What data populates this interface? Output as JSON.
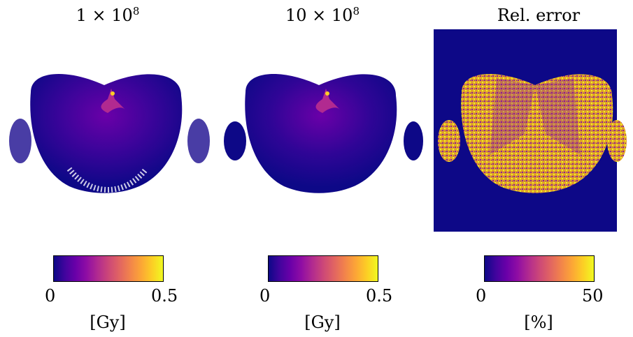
{
  "panels": [
    {
      "title_main": "1 × 10",
      "title_exp": "8",
      "cbar_min": "0",
      "cbar_max": "0.5",
      "unit": "[Gy]"
    },
    {
      "title_main": "10 × 10",
      "title_exp": "8",
      "cbar_min": "0",
      "cbar_max": "0.5",
      "unit": "[Gy]"
    },
    {
      "title_main": "Rel. error",
      "title_exp": "",
      "cbar_min": "0",
      "cbar_max": "50",
      "unit": "[%]"
    }
  ],
  "colormap": [
    "#0d0887",
    "#6a00a8",
    "#b12a90",
    "#e16462",
    "#fca636",
    "#f0f921"
  ]
}
